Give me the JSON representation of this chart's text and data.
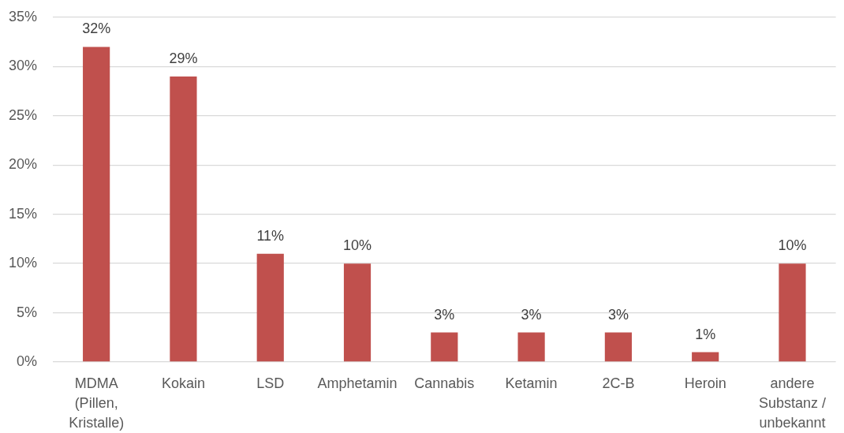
{
  "chart_data": {
    "type": "bar",
    "categories": [
      "MDMA (Pillen, Kristalle)",
      "Kokain",
      "LSD",
      "Amphetamin",
      "Cannabis",
      "Ketamin",
      "2C-B",
      "Heroin",
      "andere Substanz / unbekannt"
    ],
    "values": [
      32,
      29,
      11,
      10,
      3,
      3,
      3,
      1,
      10
    ],
    "value_labels": [
      "32%",
      "29%",
      "11%",
      "10%",
      "3%",
      "3%",
      "3%",
      "1%",
      "10%"
    ],
    "color": "#c0504d",
    "ylim": [
      0,
      35
    ],
    "yticks": [
      {
        "value": 0,
        "label": "0%"
      },
      {
        "value": 5,
        "label": "5%"
      },
      {
        "value": 10,
        "label": "10%"
      },
      {
        "value": 15,
        "label": "15%"
      },
      {
        "value": 20,
        "label": "20%"
      },
      {
        "value": 25,
        "label": "25%"
      },
      {
        "value": 30,
        "label": "30%"
      },
      {
        "value": 35,
        "label": "35%"
      }
    ],
    "grid": "y"
  }
}
